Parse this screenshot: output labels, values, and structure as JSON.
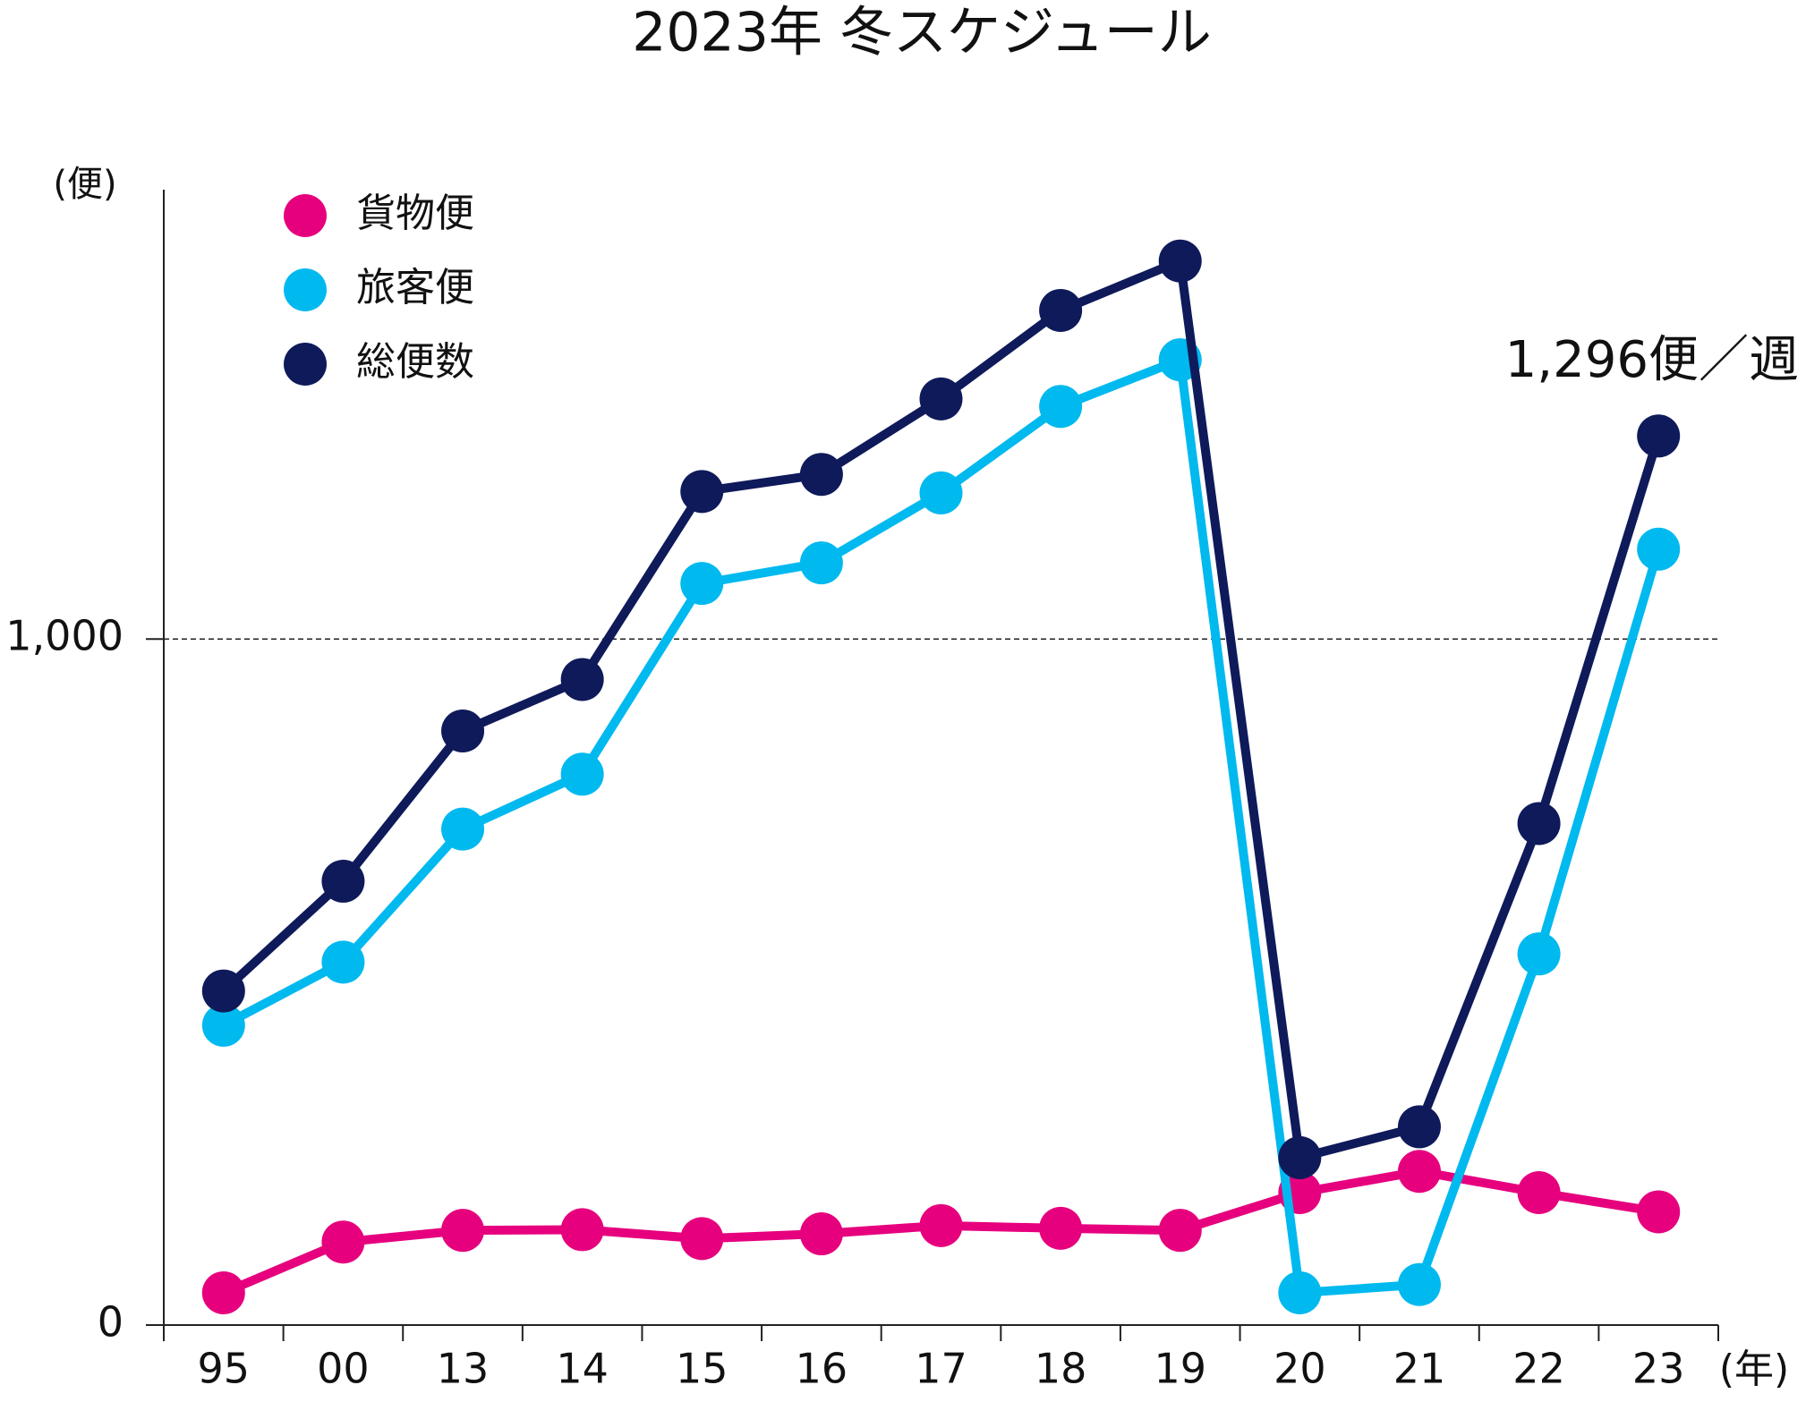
{
  "chart_data": {
    "type": "line",
    "title": "2023年 冬スケジュール",
    "y_label": "(便)",
    "x_label": "(年)",
    "annotation": "1,296便／週",
    "categories": [
      "95",
      "00",
      "13",
      "14",
      "15",
      "16",
      "17",
      "18",
      "19",
      "20",
      "21",
      "22",
      "23"
    ],
    "series": [
      {
        "name": "貨物便",
        "color": "#e6007e",
        "values": [
          47,
          121,
          138,
          139,
          126,
          133,
          145,
          141,
          138,
          193,
          224,
          193,
          165
        ]
      },
      {
        "name": "旅客便",
        "color": "#00b9ef",
        "values": [
          437,
          529,
          723,
          803,
          1081,
          1111,
          1213,
          1339,
          1407,
          47,
          59,
          541,
          1131
        ]
      },
      {
        "name": "総便数",
        "color": "#0f1a5a",
        "values": [
          487,
          647,
          866,
          941,
          1215,
          1240,
          1350,
          1479,
          1551,
          244,
          289,
          731,
          1296
        ]
      }
    ],
    "ylim": [
      0,
      1655
    ],
    "yticks": [
      0,
      {
        "value": 1000,
        "label": "1,000"
      }
    ],
    "grid": true
  }
}
